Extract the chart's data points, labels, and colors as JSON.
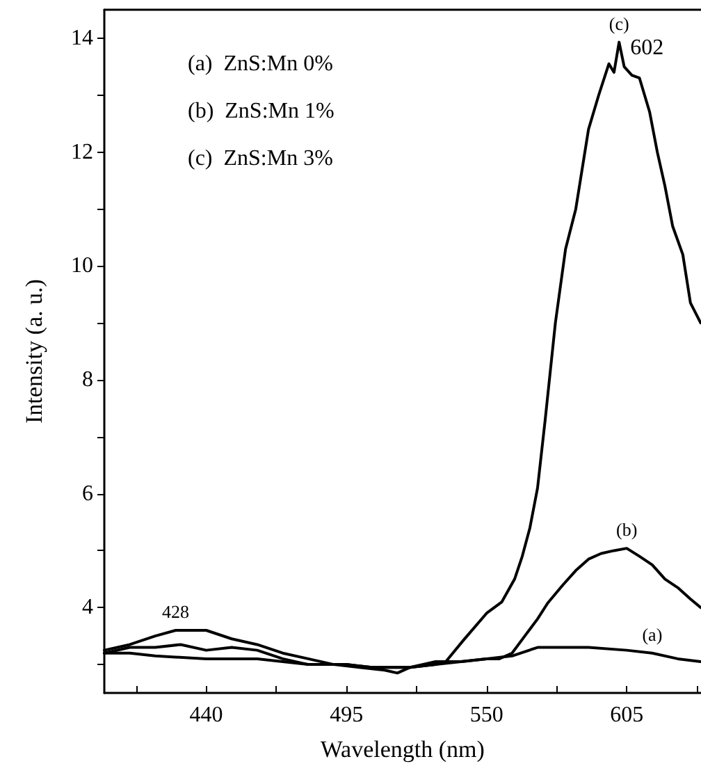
{
  "chart_data": {
    "type": "line",
    "xlabel": "Wavelength (nm)",
    "ylabel": "Intensity (a. u.)",
    "xlim": [
      400,
      634
    ],
    "ylim": [
      2.5,
      14.5
    ],
    "xticks": [
      {
        "value": 412.5,
        "label": null
      },
      440,
      {
        "value": 467.5,
        "label": null
      },
      495,
      {
        "value": 522.5,
        "label": null
      },
      550,
      {
        "value": 577.5,
        "label": null
      },
      605,
      {
        "value": 632.5,
        "label": null
      }
    ],
    "yticks": [
      {
        "value": 3,
        "label": null
      },
      4,
      {
        "value": 5,
        "label": null
      },
      6,
      {
        "value": 7,
        "label": null
      },
      8,
      {
        "value": 9,
        "label": null
      },
      10,
      {
        "value": 11,
        "label": null
      },
      12,
      {
        "value": 13,
        "label": null
      },
      14
    ],
    "grid": false,
    "series": [
      {
        "color": "#000000",
        "x": [
          400,
          410,
          420,
          440,
          460,
          470,
          480,
          495,
          505,
          520,
          530,
          540,
          550,
          560,
          570,
          580,
          590,
          605,
          615,
          625,
          634
        ],
        "values": [
          3.2,
          3.2,
          3.15,
          3.1,
          3.1,
          3.05,
          3.0,
          3.0,
          2.95,
          2.95,
          3.05,
          3.05,
          3.1,
          3.15,
          3.3,
          3.3,
          3.3,
          3.25,
          3.2,
          3.1,
          3.05
        ]
      },
      {
        "color": "#000000",
        "x": [
          400,
          410,
          420,
          430,
          440,
          450,
          460,
          470,
          480,
          495,
          505,
          515,
          520,
          530,
          540,
          550,
          555,
          560,
          565,
          570,
          574,
          580,
          585,
          590,
          595,
          600,
          605,
          610,
          615,
          620,
          625,
          630,
          634
        ],
        "values": [
          3.2,
          3.3,
          3.3,
          3.35,
          3.25,
          3.3,
          3.25,
          3.1,
          3.0,
          3.0,
          2.95,
          2.95,
          2.95,
          3.0,
          3.05,
          3.1,
          3.1,
          3.2,
          3.5,
          3.8,
          4.08,
          4.4,
          4.65,
          4.85,
          4.95,
          5.0,
          5.04,
          4.9,
          4.75,
          4.5,
          4.35,
          4.15,
          4.0
        ]
      },
      {
        "color": "#000000",
        "x": [
          400,
          410,
          420,
          428,
          435,
          440,
          450,
          460,
          470,
          480,
          490,
          500,
          510,
          515,
          520,
          530,
          534,
          541,
          550,
          556,
          561,
          564,
          567,
          570,
          573,
          577,
          581,
          585,
          590,
          594,
          598,
          600,
          602,
          604,
          607,
          610,
          614,
          617,
          620,
          623,
          627,
          630,
          634
        ],
        "values": [
          3.25,
          3.35,
          3.5,
          3.6,
          3.6,
          3.6,
          3.45,
          3.35,
          3.2,
          3.1,
          3.0,
          2.95,
          2.9,
          2.85,
          2.95,
          3.0,
          3.05,
          3.43,
          3.9,
          4.1,
          4.5,
          4.9,
          5.4,
          6.1,
          7.3,
          9.0,
          10.3,
          11.0,
          12.4,
          13.0,
          13.55,
          13.4,
          13.93,
          13.5,
          13.35,
          13.3,
          12.7,
          12.0,
          11.4,
          10.7,
          10.2,
          9.35,
          9.0
        ]
      }
    ],
    "annotations": [
      "(a)  ZnS:Mn 0%",
      "(b)  ZnS:Mn 1%",
      "(c)  ZnS:Mn 3%",
      {
        "text": "(c)",
        "x": 602,
        "y": 13.93
      },
      {
        "text": "602",
        "x": 602,
        "y": 13.93
      },
      {
        "text": "428",
        "x": 428,
        "y": 3.6
      },
      {
        "text": "(b)",
        "x": 605,
        "y": 5.04
      },
      {
        "text": "(a)",
        "x": 615,
        "y": 3.2
      }
    ]
  }
}
